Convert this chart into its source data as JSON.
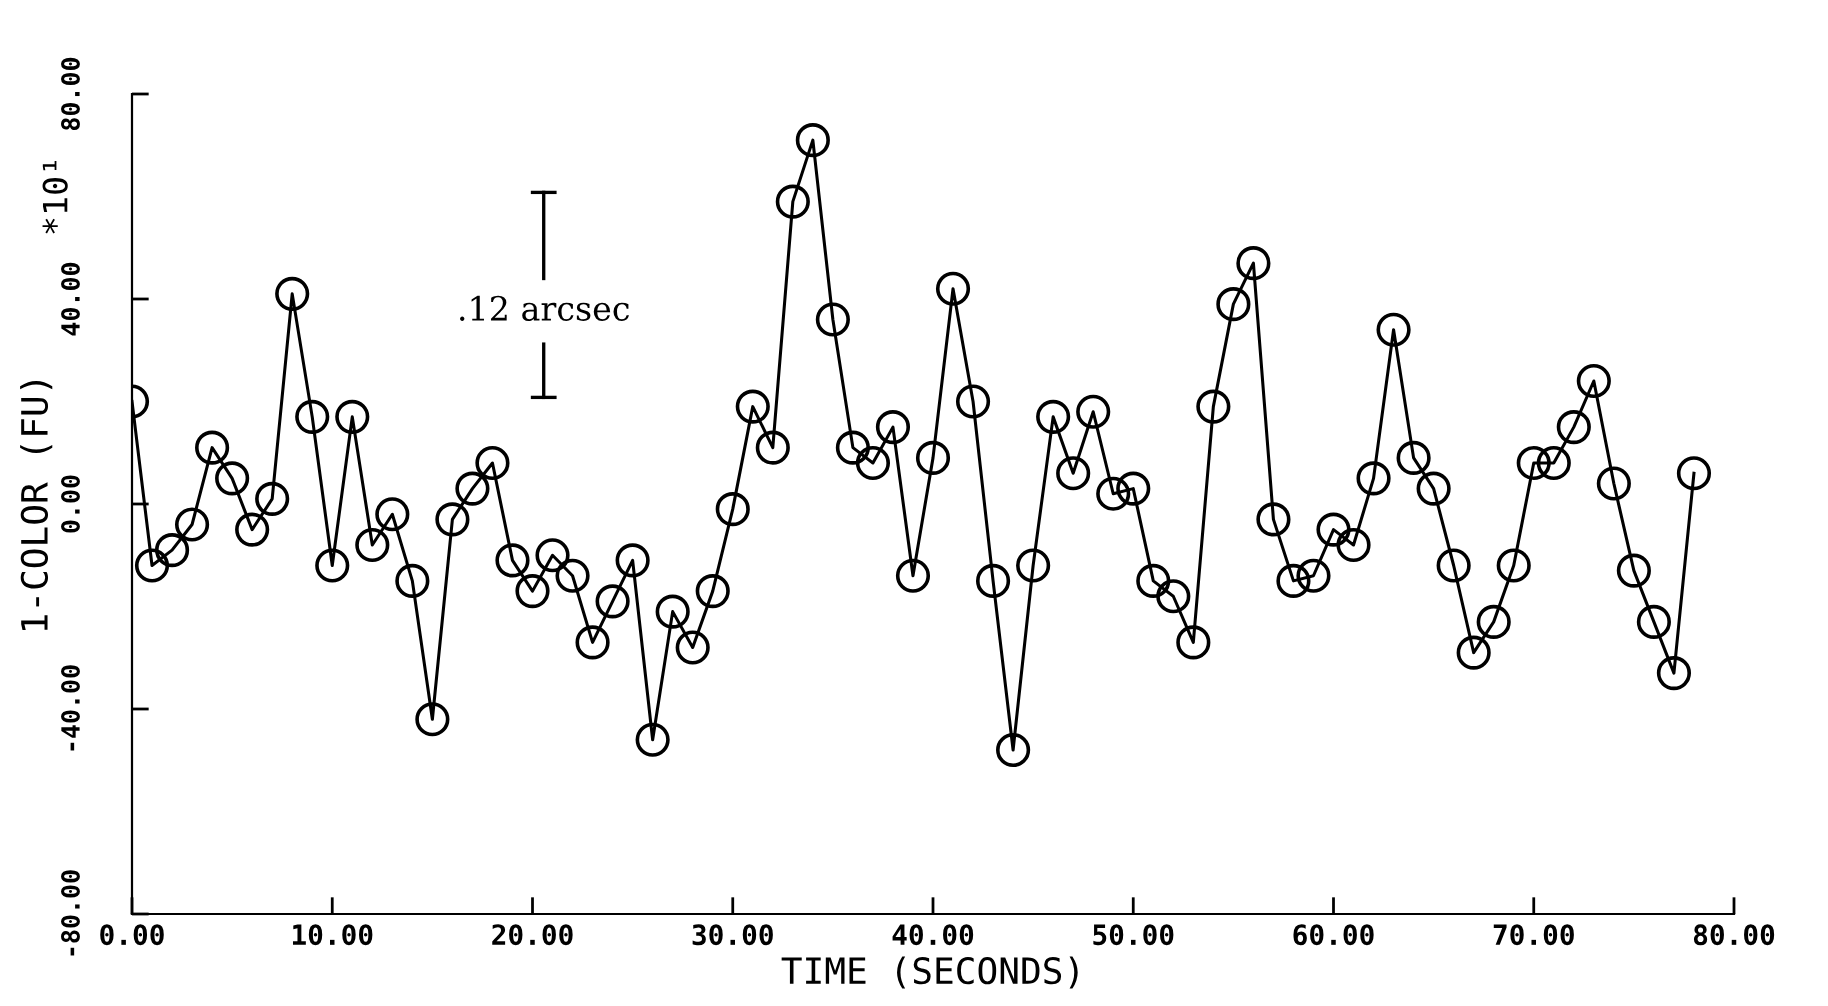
{
  "chart_data": {
    "type": "line",
    "xlabel": "TIME (SECONDS)",
    "ylabel": "1-COLOR (FU)",
    "annotations": [
      "*10¹",
      ".12 arcsec"
    ],
    "x": [
      0,
      1,
      2,
      3,
      4,
      5,
      6,
      7,
      8,
      9,
      10,
      11,
      12,
      13,
      14,
      15,
      16,
      17,
      18,
      19,
      20,
      21,
      22,
      23,
      24,
      25,
      26,
      27,
      28,
      29,
      30,
      31,
      32,
      33,
      34,
      35,
      36,
      37,
      38,
      39,
      40,
      41,
      42,
      43,
      44,
      45,
      46,
      47,
      48,
      49,
      50,
      51,
      52,
      53,
      54,
      55,
      56,
      57,
      58,
      59,
      60,
      61,
      62,
      63,
      64,
      65,
      66,
      67,
      68,
      69,
      70,
      71,
      72,
      73,
      74,
      75,
      76,
      77,
      78
    ],
    "series": [
      {
        "color": "#000000",
        "values": [
          20,
          -12,
          -9,
          -4,
          11,
          5,
          -5,
          1,
          41,
          17,
          -12,
          17,
          -8,
          -2,
          -15,
          -42,
          -3,
          3,
          8,
          -11,
          -17,
          -10,
          -14,
          -27,
          -19,
          -11,
          -46,
          -21,
          -28,
          -17,
          -1,
          19,
          11,
          59,
          71,
          36,
          11,
          8,
          15,
          -14,
          9,
          42,
          20,
          -15,
          -48,
          -12,
          17,
          6,
          18,
          2,
          3,
          -15,
          -18,
          -27,
          19,
          39,
          47,
          -3,
          -15,
          -14,
          -5,
          -8,
          5,
          34,
          9,
          3,
          -12,
          -29,
          -23,
          -12,
          8,
          8,
          15,
          24,
          4,
          -13,
          -23,
          -33,
          6
        ]
      }
    ],
    "xlim": [
      0,
      80
    ],
    "xticks": [
      {
        "value": 0,
        "label": "0.00"
      },
      {
        "value": 10,
        "label": "10.00"
      },
      {
        "value": 20,
        "label": "20.00"
      },
      {
        "value": 30,
        "label": "30.00"
      },
      {
        "value": 40,
        "label": "40.00"
      },
      {
        "value": 50,
        "label": "50.00"
      },
      {
        "value": 60,
        "label": "60.00"
      },
      {
        "value": 70,
        "label": "70.00"
      },
      {
        "value": 80,
        "label": "80.00"
      }
    ],
    "ylim": [
      -80,
      80
    ],
    "yticks": [
      {
        "value": -80,
        "label": "-80.00"
      },
      {
        "value": -40,
        "label": "-40.00"
      },
      {
        "value": 0,
        "label": "0.00"
      },
      {
        "value": 40,
        "label": "40.00"
      },
      {
        "value": 80,
        "label": "80.00"
      }
    ],
    "marker": "circle",
    "line_style": "solid",
    "grid": false,
    "legend": false
  }
}
